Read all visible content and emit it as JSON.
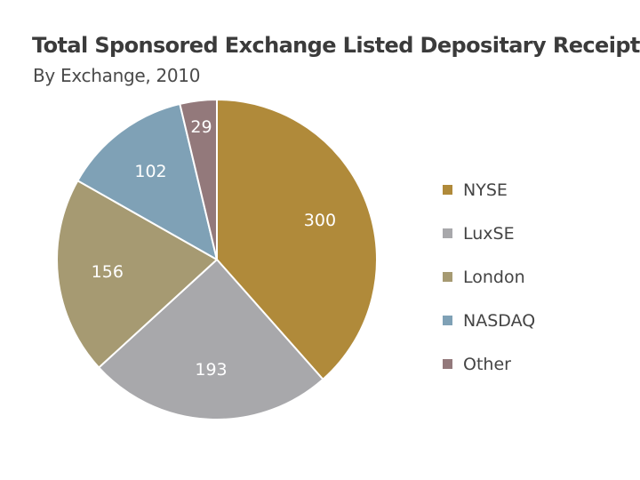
{
  "chart_data": {
    "type": "pie",
    "title": "Total Sponsored Exchange Listed Depositary Receipts",
    "subtitle": "By Exchange, 2010",
    "categories": [
      "NYSE",
      "LuxSE",
      "London",
      "NASDAQ",
      "Other"
    ],
    "values": [
      300,
      193,
      156,
      102,
      29
    ],
    "colors": [
      "#b08a3a",
      "#a8a8ab",
      "#a69a72",
      "#7fa1b6",
      "#93797b"
    ],
    "legend_position": "right"
  }
}
